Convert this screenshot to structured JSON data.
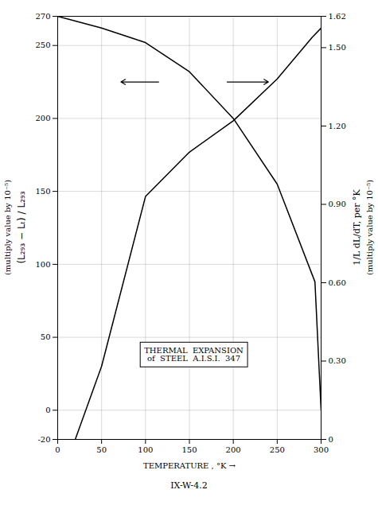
{
  "chart_data": {
    "type": "line",
    "xlabel": "TEMPERATURE , °K",
    "ylabel": "(L₂₉₃ − Lₜ) / L₂₉₃",
    "ylabel_note": "(multiply value by 10⁻⁵)",
    "y2label": "1/L dL/dT, per °K",
    "y2label_note": "(multiply value by 10⁻⁵)",
    "caption": "IX-W-4.2",
    "xlim": [
      0,
      300
    ],
    "xticks": [
      0,
      50,
      100,
      150,
      200,
      250,
      300
    ],
    "ylim": [
      -20,
      270
    ],
    "yticks": [
      -20,
      0,
      50,
      100,
      150,
      200,
      250,
      270
    ],
    "y2lim": [
      0,
      1.62
    ],
    "y2ticks": [
      0,
      {
        "value": 0.3,
        "label": "0.30"
      },
      {
        "value": 0.6,
        "label": "0.60"
      },
      {
        "value": 0.9,
        "label": "0.90"
      },
      {
        "value": 1.2,
        "label": "1.20"
      },
      {
        "value": 1.5,
        "label": "1.50"
      },
      1.62
    ],
    "grid": true,
    "series": [
      {
        "color": "#000000",
        "x": [
          0,
          50,
          100,
          150,
          200,
          250,
          293,
          300
        ],
        "values": [
          270,
          262,
          252,
          232,
          200,
          155,
          88,
          0
        ]
      },
      {
        "color": "#000000",
        "axis": "y2",
        "x": [
          20,
          50,
          100,
          150,
          200,
          250,
          290,
          300
        ],
        "values": [
          0.0,
          0.28,
          0.93,
          1.1,
          1.22,
          1.38,
          1.54,
          1.575
        ]
      }
    ],
    "arrows": [
      {
        "from": [
          115,
          225
        ],
        "to": [
          72,
          225
        ]
      },
      {
        "from": [
          193,
          225
        ],
        "to": [
          240,
          225
        ]
      }
    ],
    "annotations": [
      {
        "text": "THERMAL  EXPANSION\nof  STEEL  A.I.S.I.  347",
        "x": 155,
        "y": 38
      }
    ]
  }
}
